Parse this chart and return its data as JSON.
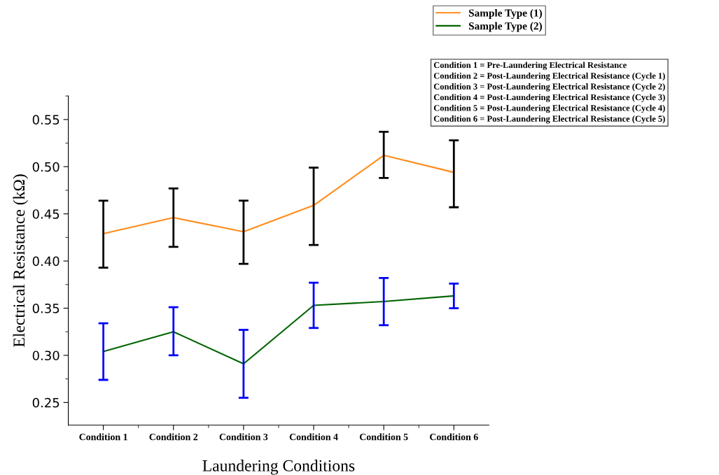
{
  "chart_data": {
    "type": "line",
    "xlabel": "Laundering Conditions",
    "ylabel": "Electrical Resistance (kΩ)",
    "categories": [
      "Condition 1",
      "Condition 2",
      "Condition 3",
      "Condition 4",
      "Condition 5",
      "Condition 6"
    ],
    "series": [
      {
        "name": "Sample Type (1)",
        "color": "#ff8c1a",
        "values": [
          0.429,
          0.446,
          0.431,
          0.459,
          0.512,
          0.494
        ],
        "errors": [
          [
            0.393,
            0.464
          ],
          [
            0.415,
            0.477
          ],
          [
            0.397,
            0.464
          ],
          [
            0.417,
            0.499
          ],
          [
            0.488,
            0.537
          ],
          [
            0.457,
            0.528
          ]
        ]
      },
      {
        "name": "Sample Type (2)",
        "color": "#006400",
        "values": [
          0.304,
          0.325,
          0.291,
          0.353,
          0.357,
          0.363
        ],
        "errors": [
          [
            0.274,
            0.334
          ],
          [
            0.3,
            0.351
          ],
          [
            0.255,
            0.327
          ],
          [
            0.329,
            0.377
          ],
          [
            0.332,
            0.382
          ],
          [
            0.35,
            0.376
          ]
        ]
      }
    ],
    "ylim": [
      0.226,
      0.575
    ],
    "yticks": [
      0.25,
      {
        "value": 0.3,
        "label": "0.30"
      },
      0.35,
      {
        "value": 0.4,
        "label": "0.40"
      },
      0.45,
      {
        "value": 0.5,
        "label": "0.50"
      },
      0.55
    ],
    "legend": "top right",
    "grid": false,
    "marker": "none",
    "line_style": "solid",
    "annotations": [
      "Condition 1 = Pre-Laundering Electrical Resistance",
      "Condition 2 = Post-Laundering Electrical Resistance (Cycle 1)",
      "Condition 3 = Post-Laundering Electrical Resistance (Cycle 2)",
      "Condition 4 = Post-Laundering Electrical Resistance (Cycle 3)",
      "Condition 5 = Post-Laundering Electrical Resistance (Cycle 4)",
      "Condition 6 = Post-Laundering Electrical Resistance (Cycle 5)"
    ]
  }
}
